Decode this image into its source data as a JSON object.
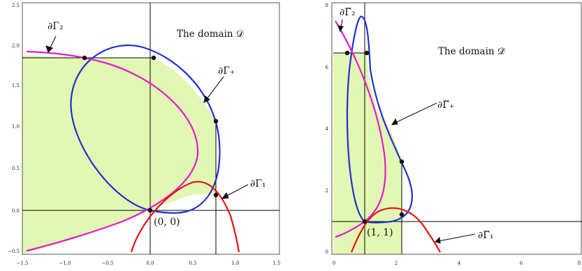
{
  "left_panel": {
    "domain_label": "The domain 𝒟",
    "labels": {
      "gamma2": "∂Γ₂",
      "gamma_plus": "∂Γ₊",
      "gamma1": "∂Γ₁",
      "origin": "(0, 0)"
    },
    "x_ticks": [
      "−1.5",
      "−1.0",
      "−0.5",
      "0.0",
      "0.5",
      "1.0",
      "1.5"
    ],
    "y_ticks": [
      "−0.5",
      "0.0",
      "0.5",
      "1.0",
      "1.5",
      "2.0",
      "2.5"
    ]
  },
  "right_panel": {
    "domain_label": "The domain 𝒟̃",
    "labels": {
      "gamma2": "∂Γ̃₂",
      "gamma_plus": "∂Γ̃₊",
      "gamma1": "∂Γ̃₁",
      "point": "(1, 1)"
    },
    "x_ticks": [
      "0",
      "2",
      "4",
      "6",
      "8"
    ],
    "y_ticks": [
      "0",
      "2",
      "4",
      "6",
      "8"
    ]
  },
  "colors": {
    "fill": "#e2f7b3",
    "blue": "#1f2fcf",
    "magenta": "#e21ad0",
    "red": "#e21414"
  }
}
